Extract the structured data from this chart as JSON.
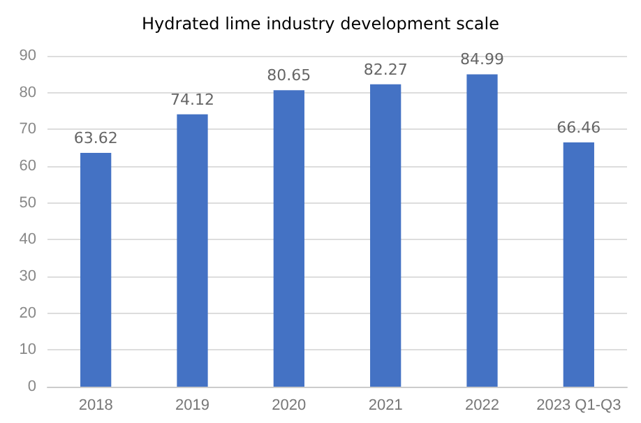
{
  "chart_data": {
    "type": "bar",
    "title": "Hydrated lime industry development scale",
    "categories": [
      "2018",
      "2019",
      "2020",
      "2021",
      "2022",
      "2023 Q1-Q3"
    ],
    "values": [
      63.62,
      74.12,
      80.65,
      82.27,
      84.99,
      66.46
    ],
    "color": "#4472c4",
    "ylim": [
      0,
      90
    ],
    "yticks": [
      0,
      10,
      20,
      30,
      40,
      50,
      60,
      70,
      80,
      90
    ],
    "grid": "y",
    "data_labels": true
  }
}
